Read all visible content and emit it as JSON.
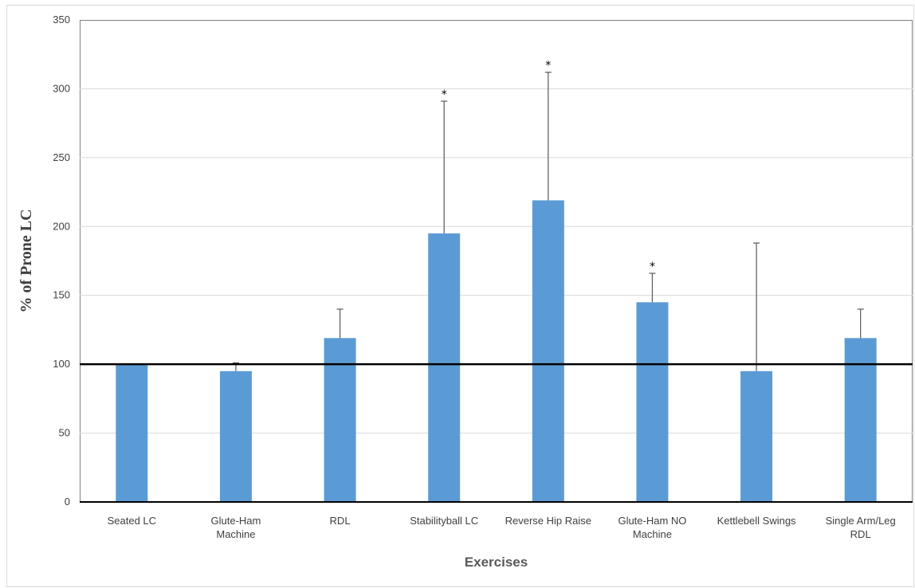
{
  "chart_data": {
    "type": "bar",
    "title": "",
    "xlabel": "Exercises",
    "ylabel": "% of Prone LC",
    "ylim": [
      0,
      350
    ],
    "yticks": [
      0,
      50,
      100,
      150,
      200,
      250,
      300,
      350
    ],
    "grid": "horizontal",
    "legend": "none",
    "bar_color": "#5b9bd5",
    "reference_line": {
      "value": 100,
      "color": "#000000"
    },
    "categories": [
      [
        "Seated LC"
      ],
      [
        "Glute-Ham",
        "Machine"
      ],
      [
        "RDL"
      ],
      [
        "Stabilityball LC"
      ],
      [
        "Reverse Hip Raise"
      ],
      [
        "Glute-Ham NO",
        "Machine"
      ],
      [
        "Kettlebell Swings"
      ],
      [
        "Single Arm/Leg",
        "RDL"
      ]
    ],
    "values": [
      100,
      95,
      119,
      195,
      219,
      145,
      95,
      119
    ],
    "error_upper": [
      0,
      6,
      21,
      96,
      93,
      21,
      93,
      21
    ],
    "significant": [
      false,
      false,
      false,
      true,
      true,
      true,
      false,
      false
    ],
    "significance_marker": "*"
  }
}
